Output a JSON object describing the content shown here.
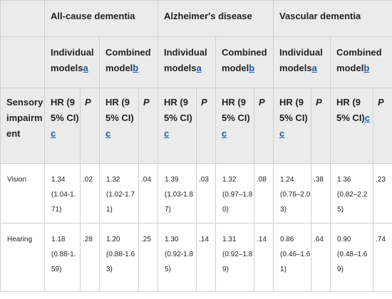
{
  "table": {
    "groups": [
      "All-cause dementia",
      "Alzheimer's disease",
      "Vascular dementia"
    ],
    "subgroups": {
      "individual": "Individual models",
      "individual_sup": "a",
      "combined": "Combined model",
      "combined_sup": "b"
    },
    "row_header": "Sensory impairment",
    "hr_label": "HR (95% CI)",
    "hr_sup": "c",
    "p_label": "P",
    "rows": [
      {
        "label": "Vision",
        "cells": [
          {
            "hr": "1.34",
            "ci": "(1.04-1.71)",
            "p": ".02"
          },
          {
            "hr": "1.32",
            "ci": "(1.02-1.71)",
            "p": ".04"
          },
          {
            "hr": "1.39",
            "ci": "(1.03-1.87)",
            "p": ".03"
          },
          {
            "hr": "1.32",
            "ci": "(0.97–1.80)",
            "p": ".08"
          },
          {
            "hr": "1.24",
            "ci": "(0.76–2.03)",
            "p": ".38"
          },
          {
            "hr": "1.36",
            "ci": "(0.82–2.25)",
            "p": ".23"
          }
        ]
      },
      {
        "label": "Hearing",
        "cells": [
          {
            "hr": "1.18",
            "ci": "(0.88-1.59)",
            "p": ".28"
          },
          {
            "hr": "1.20",
            "ci": "(0.88-1.63)",
            "p": ".25"
          },
          {
            "hr": "1.30",
            "ci": "(0.92-1.85)",
            "p": ".14"
          },
          {
            "hr": "1.31",
            "ci": "(0.92–1.89)",
            "p": ".14"
          },
          {
            "hr": "0.86",
            "ci": "(0.46–1.61)",
            "p": ".64"
          },
          {
            "hr": "0.90",
            "ci": "(0.48–1.69)",
            "p": ".74"
          }
        ]
      }
    ]
  }
}
